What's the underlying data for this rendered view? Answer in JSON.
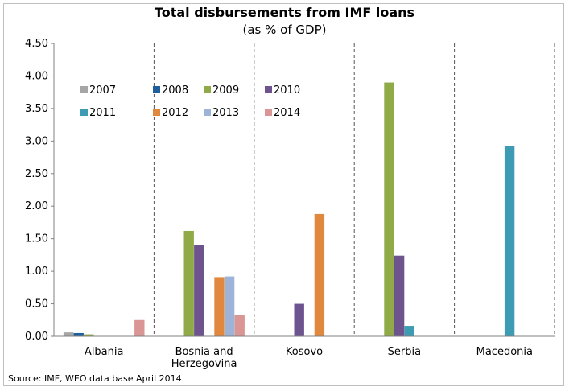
{
  "chart_data": {
    "type": "bar",
    "title": "Total disbursements from IMF loans",
    "subtitle": "(as % of GDP)",
    "categories": [
      [
        "Albania"
      ],
      [
        "Bosnia and",
        "Herzegovina"
      ],
      [
        "Kosovo"
      ],
      [
        "Serbia"
      ],
      [
        "Macedonia"
      ]
    ],
    "ylim": [
      0,
      4.5
    ],
    "yticks": [
      "0.00",
      "0.50",
      "1.00",
      "1.50",
      "2.00",
      "2.50",
      "3.00",
      "3.50",
      "4.00",
      "4.50"
    ],
    "ytick_values": [
      0,
      0.5,
      1,
      1.5,
      2,
      2.5,
      3,
      3.5,
      4,
      4.5
    ],
    "legend": "top-left",
    "series": [
      {
        "name": "2007",
        "color": "#a6a6a6",
        "values": [
          0.06,
          0,
          0,
          0,
          0
        ]
      },
      {
        "name": "2008",
        "color": "#1f5f9e",
        "values": [
          0.05,
          0,
          0,
          0,
          0
        ]
      },
      {
        "name": "2009",
        "color": "#8faa46",
        "values": [
          0.03,
          1.62,
          0,
          3.9,
          0
        ]
      },
      {
        "name": "2010",
        "color": "#6e548f",
        "values": [
          0,
          1.4,
          0.5,
          1.24,
          0
        ]
      },
      {
        "name": "2011",
        "color": "#3d9bb3",
        "values": [
          0,
          0,
          0,
          0.16,
          2.93
        ]
      },
      {
        "name": "2012",
        "color": "#e0893e",
        "values": [
          0,
          0.91,
          1.88,
          0,
          0
        ]
      },
      {
        "name": "2013",
        "color": "#9db3d8",
        "values": [
          0,
          0.92,
          0,
          0,
          0
        ]
      },
      {
        "name": "2014",
        "color": "#d99694",
        "values": [
          0.25,
          0.33,
          0,
          0,
          0
        ]
      }
    ]
  },
  "source": "Source: IMF, WEO data base April 2014."
}
